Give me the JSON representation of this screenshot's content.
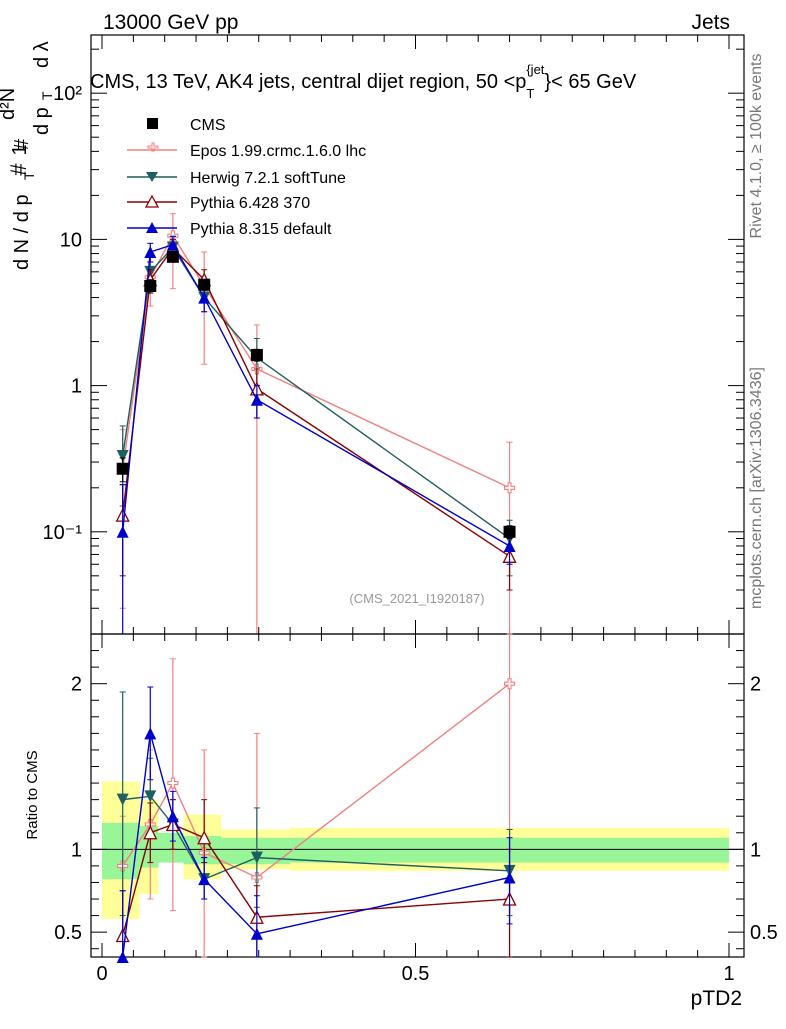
{
  "header": {
    "energy_label": "13000 GeV pp",
    "category_label": "Jets",
    "rivet_label": "Rivet 4.1.0, ≥ 100k events",
    "mcplots_label": "mcplots.cern.ch [arXiv:1306.3436]",
    "analysis_label": "(CMS_2021_I1920187)"
  },
  "colors": {
    "cms": "#000000",
    "epos": "#f08080",
    "herwig": "#1e5f5f",
    "pythia6": "#8b0000",
    "pythia8": "#0000cd",
    "band_inner": "#98f598",
    "band_outer": "#ffff99"
  },
  "chart_data": [
    {
      "type": "scatter",
      "panel": "main",
      "title": "CMS, 13 TeV, AK4 jets, central dijet region, 50 < p_T^{jet} < 65 GeV",
      "ylabel": "1/(d N / d p_T) d²N/(d p_T dλ)",
      "xlabel": "",
      "yscale": "log",
      "xlim": [
        0,
        1
      ],
      "ylim": [
        0.02,
        250
      ],
      "yticks": [
        {
          "v": 0.1,
          "label": "10⁻¹"
        },
        {
          "v": 1,
          "label": "1"
        },
        {
          "v": 10,
          "label": "10"
        },
        {
          "v": 100,
          "label": "10²"
        }
      ],
      "bins": [
        [
          0,
          0.06
        ],
        [
          0.06,
          0.09
        ],
        [
          0.09,
          0.13
        ],
        [
          0.13,
          0.19
        ],
        [
          0.19,
          0.3
        ],
        [
          0.3,
          1
        ]
      ],
      "series": [
        {
          "name": "CMS",
          "key": "cms",
          "marker": "square",
          "x": [
            0.033,
            0.077,
            0.113,
            0.163,
            0.247,
            0.65
          ],
          "y": [
            0.27,
            4.8,
            7.6,
            4.9,
            1.62,
            0.1
          ],
          "yerr": [
            0.05,
            0.5,
            0.6,
            0.4,
            0.15,
            0.01
          ]
        },
        {
          "name": "Epos 1.99.crmc.1.6.0 lhc",
          "key": "epos",
          "marker": "cross",
          "x": [
            0.033,
            0.077,
            0.113,
            0.163,
            0.247,
            0.65
          ],
          "y": [
            0.27,
            5.5,
            10.6,
            4.8,
            1.3,
            0.2
          ],
          "ylo": [
            0.03,
            3.5,
            4.6,
            1.4,
            0.02,
            0.02
          ],
          "yhi": [
            0.5,
            7.5,
            15,
            8.2,
            2.6,
            0.41
          ]
        },
        {
          "name": "Herwig 7.2.1 softTune",
          "key": "herwig",
          "marker": "triangle-down",
          "x": [
            0.033,
            0.077,
            0.113,
            0.163,
            0.247,
            0.65
          ],
          "y": [
            0.33,
            6.0,
            8.8,
            4.0,
            1.55,
            0.09
          ],
          "ylo": [
            0.15,
            5.0,
            7.5,
            3.2,
            1.0,
            0.05
          ],
          "yhi": [
            0.53,
            7.0,
            10.5,
            5.0,
            2.1,
            0.12
          ]
        },
        {
          "name": "Pythia 6.428 370",
          "key": "pythia6",
          "marker": "triangle-open",
          "x": [
            0.033,
            0.077,
            0.113,
            0.163,
            0.247,
            0.65
          ],
          "y": [
            0.13,
            5.3,
            8.7,
            5.3,
            0.95,
            0.068
          ],
          "ylo": [
            0.05,
            4.5,
            7.5,
            4.5,
            0.6,
            0.04
          ],
          "yhi": [
            0.21,
            6.2,
            10,
            6.2,
            1.3,
            0.095
          ]
        },
        {
          "name": "Pythia 8.315 default",
          "key": "pythia8",
          "marker": "triangle-up",
          "x": [
            0.033,
            0.077,
            0.113,
            0.163,
            0.247,
            0.65
          ],
          "y": [
            0.1,
            8.2,
            9.2,
            4.0,
            0.8,
            0.08
          ],
          "ylo": [
            0.02,
            7.0,
            8.0,
            3.2,
            0.6,
            0.06
          ],
          "yhi": [
            0.21,
            9.4,
            10.5,
            5.0,
            1.0,
            0.1
          ]
        }
      ]
    },
    {
      "type": "scatter",
      "panel": "ratio",
      "title": "",
      "xlabel": "pTD2",
      "ylabel": "Ratio to CMS",
      "xlim": [
        0,
        1
      ],
      "ylim": [
        0.35,
        2.3
      ],
      "xticks": [
        {
          "v": 0,
          "label": "0"
        },
        {
          "v": 0.5,
          "label": "0.5"
        },
        {
          "v": 1,
          "label": "1"
        }
      ],
      "yticks": [
        {
          "v": 0.5,
          "label": "0.5"
        },
        {
          "v": 1,
          "label": "1"
        },
        {
          "v": 2,
          "label": "2"
        }
      ],
      "band_inner": [
        [
          0.82,
          1.16
        ],
        [
          0.89,
          1.14
        ],
        [
          0.92,
          1.1
        ],
        [
          0.91,
          1.08
        ],
        [
          0.91,
          1.07
        ],
        [
          0.92,
          1.07
        ]
      ],
      "band_outer": [
        [
          0.58,
          1.41
        ],
        [
          0.73,
          1.3
        ],
        [
          0.95,
          1.05
        ],
        [
          0.82,
          1.21
        ],
        [
          0.88,
          1.12
        ],
        [
          0.87,
          1.13
        ]
      ],
      "series": [
        {
          "name": "Epos 1.99.crmc.1.6.0 lhc",
          "key": "epos",
          "marker": "cross",
          "x": [
            0.033,
            0.077,
            0.113,
            0.163,
            0.247,
            0.65
          ],
          "y": [
            0.9,
            1.15,
            1.4,
            0.98,
            0.83,
            2.0
          ],
          "ylo": [
            0.35,
            0.7,
            0.63,
            0.35,
            0.35,
            0.35
          ],
          "yhi": [
            1.2,
            1.6,
            2.15,
            1.6,
            1.7,
            2.3
          ]
        },
        {
          "name": "Herwig 7.2.1 softTune",
          "key": "herwig",
          "marker": "triangle-down",
          "x": [
            0.033,
            0.077,
            0.113,
            0.163,
            0.247,
            0.65
          ],
          "y": [
            1.3,
            1.32,
            1.15,
            0.82,
            0.95,
            0.87
          ],
          "ylo": [
            0.6,
            1.1,
            1.0,
            0.7,
            0.65,
            0.6
          ],
          "yhi": [
            1.95,
            1.55,
            1.3,
            0.95,
            1.25,
            1.12
          ]
        },
        {
          "name": "Pythia 6.428 370",
          "key": "pythia6",
          "marker": "triangle-open",
          "x": [
            0.033,
            0.077,
            0.113,
            0.163,
            0.247,
            0.65
          ],
          "y": [
            0.48,
            1.1,
            1.15,
            1.07,
            0.59,
            0.7
          ],
          "ylo": [
            0.35,
            0.92,
            1.0,
            0.92,
            0.35,
            0.35
          ],
          "yhi": [
            0.75,
            1.28,
            1.3,
            1.3,
            0.78,
            1.0
          ]
        },
        {
          "name": "Pythia 8.315 default",
          "key": "pythia8",
          "marker": "triangle-up",
          "x": [
            0.033,
            0.077,
            0.113,
            0.163,
            0.247,
            0.65
          ],
          "y": [
            0.35,
            1.7,
            1.2,
            0.82,
            0.49,
            0.83
          ],
          "ylo": [
            0.35,
            1.42,
            1.05,
            0.7,
            0.35,
            0.55
          ],
          "yhi": [
            0.75,
            1.98,
            1.35,
            0.95,
            0.72,
            1.07
          ]
        }
      ]
    }
  ]
}
